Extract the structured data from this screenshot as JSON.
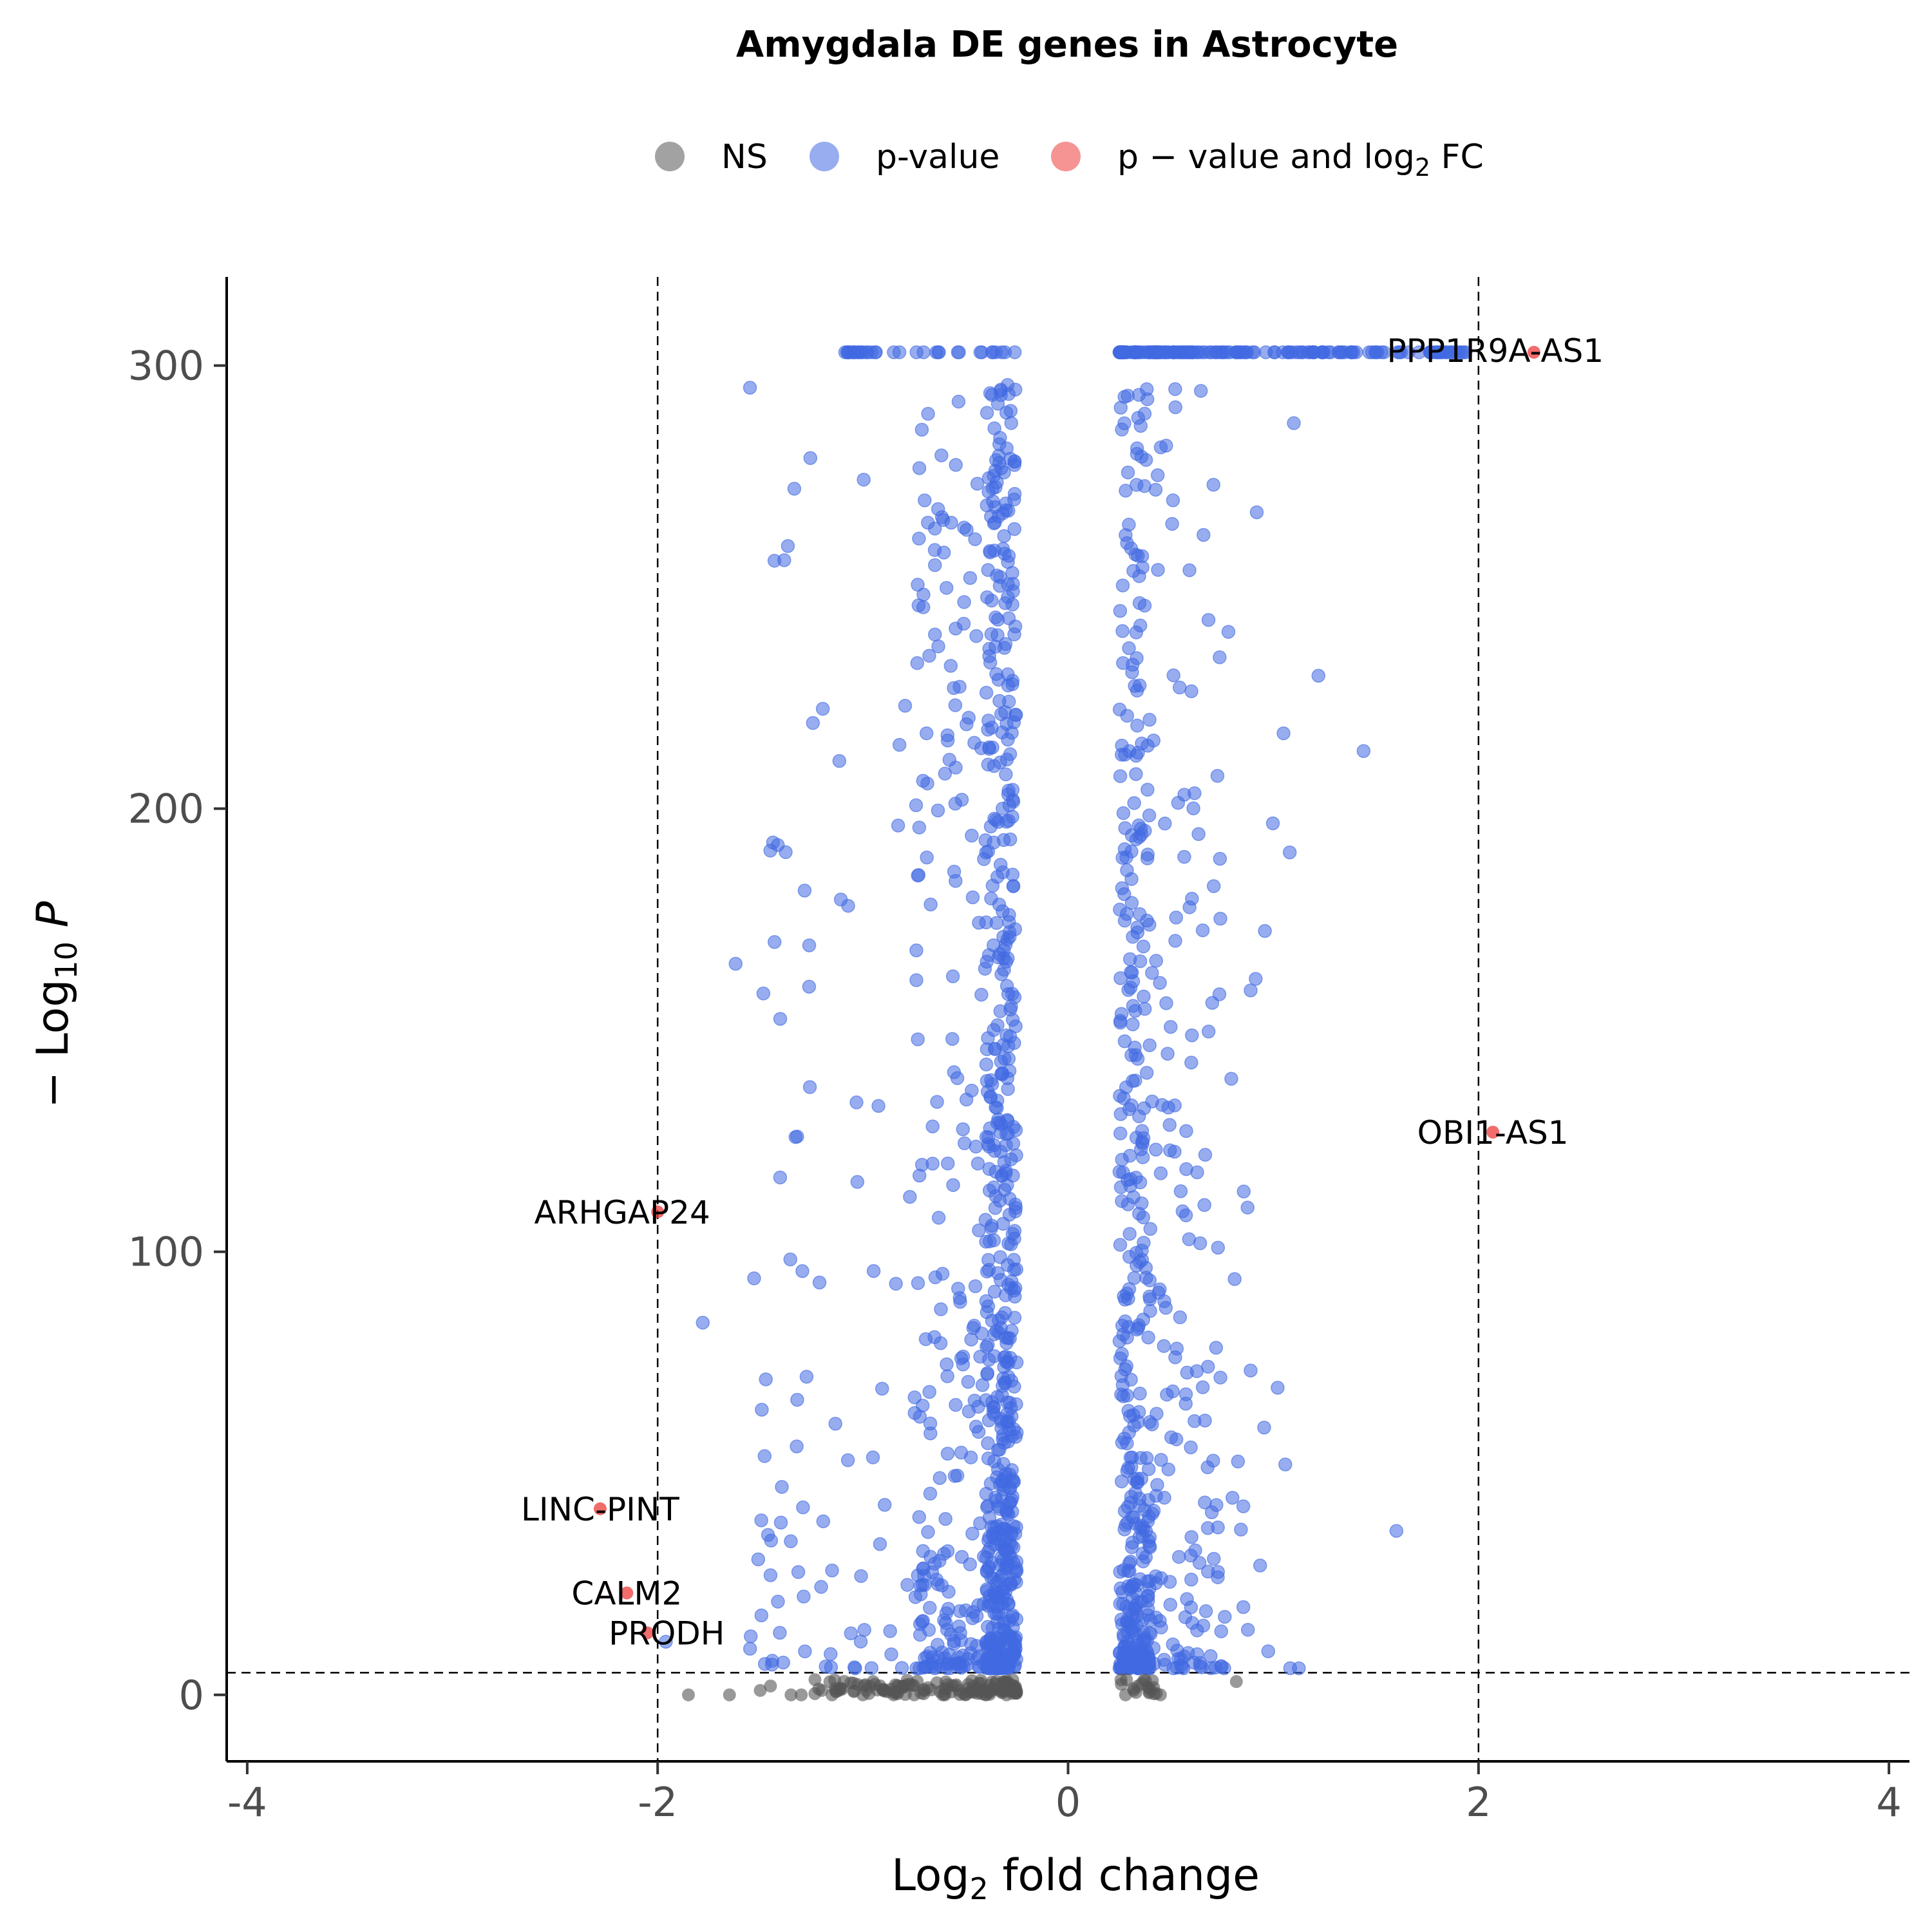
{
  "chart_data": {
    "type": "scatter",
    "title": "Amygdala DE genes in Astrocyte",
    "xlabel_parts": {
      "pre": "Log",
      "sub": "2",
      "post": " fold change"
    },
    "ylabel_parts": {
      "pre": "− Log",
      "sub": "10",
      "italic": "P"
    },
    "xlim": [
      -4.1,
      4.1
    ],
    "ylim": [
      -15,
      320
    ],
    "x_ticks": [
      -4,
      -2,
      0,
      2,
      4
    ],
    "x_tick_labels": [
      "-4",
      "-2",
      "0",
      "2",
      "4"
    ],
    "y_ticks": [
      0,
      100,
      200,
      300
    ],
    "y_tick_labels": [
      "0",
      "100",
      "200",
      "300"
    ],
    "grid": false,
    "thresholds": {
      "log2fc": [
        -2,
        2
      ],
      "neg_log10_p": 5
    },
    "legend_position": "top",
    "legend": [
      {
        "key": "NS",
        "label": "NS",
        "color": "#555555"
      },
      {
        "key": "p",
        "label": "p-value",
        "color": "#4169E1"
      },
      {
        "key": "pfc",
        "label_pre": "p − value and log",
        "label_sub": "2",
        "label_post": " FC",
        "color": "#EE3B3B"
      }
    ],
    "highlighted_genes": [
      {
        "label": "PPP1R9A-AS1",
        "x": 2.27,
        "y": 303
      },
      {
        "label": "OBI1-AS1",
        "x": 2.07,
        "y": 127
      },
      {
        "label": "ARHGAP24",
        "x": -2.0,
        "y": 109
      },
      {
        "label": "LINC-PINT",
        "x": -2.28,
        "y": 42
      },
      {
        "label": "CALM2",
        "x": -2.15,
        "y": 23
      },
      {
        "label": "PRODH",
        "x": -2.05,
        "y": 14
      }
    ],
    "ns_points": [
      [
        -1.85,
        0
      ],
      [
        -1.65,
        0
      ],
      [
        -1.5,
        1
      ],
      [
        -1.45,
        2
      ],
      [
        -1.35,
        0
      ],
      [
        -1.3,
        0
      ],
      [
        -1.2,
        1
      ],
      [
        -1.15,
        0
      ],
      [
        -1.0,
        0
      ],
      [
        -0.95,
        3
      ],
      [
        -0.9,
        1
      ],
      [
        -0.85,
        0
      ],
      [
        -0.8,
        2
      ],
      [
        -0.75,
        0
      ],
      [
        -0.7,
        1
      ],
      [
        -0.6,
        0
      ],
      [
        -0.55,
        2
      ],
      [
        -0.5,
        0
      ],
      [
        -0.45,
        1
      ],
      [
        -0.4,
        0
      ],
      [
        -0.35,
        3
      ],
      [
        -0.3,
        0
      ],
      [
        -0.28,
        1
      ],
      [
        0.28,
        0
      ],
      [
        0.32,
        1
      ],
      [
        0.45,
        0
      ],
      [
        0.82,
        3
      ]
    ]
  }
}
